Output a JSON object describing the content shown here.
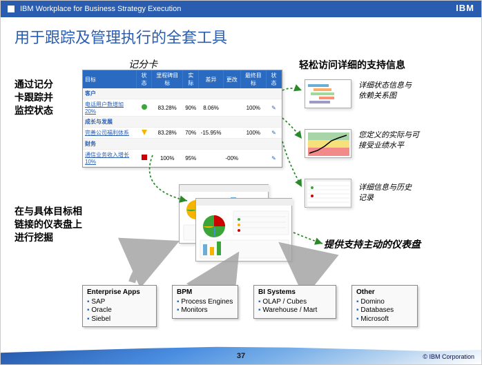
{
  "header": {
    "breadcrumb": "IBM Workplace for Business Strategy Execution",
    "logo": "IBM"
  },
  "title": "用于跟踪及管理执行的全套工具",
  "annotations": {
    "scorecard_label": "记分卡",
    "left_top": "通过记分\n卡跟踪并\n监控状态",
    "right_top": "轻松访问详细的支持信息",
    "left_mid": "在与具体目标相\n链接的仪表盘上\n进行挖掘",
    "right_mid": "提供支持主动的仪表盘",
    "thumb1_note": "详细状态信息与\n依赖关系图",
    "thumb2_note": "您定义的实际与可\n接受业绩水平",
    "thumb3_note": "详细信息与历史\n记录"
  },
  "scorecard": {
    "headers": [
      "目标",
      "状态",
      "里程碑目标",
      "实际",
      "差异",
      "更改",
      "最终目标",
      "状态"
    ],
    "sections": [
      {
        "name": "客户",
        "rows": [
          {
            "label": "电话用户数增加20%",
            "status": "green",
            "milestone": "83.28%",
            "actual": "90%",
            "variance": "8.06%",
            "change": "",
            "final": "100%",
            "mark": "✎"
          }
        ]
      },
      {
        "name": "成长与发展",
        "rows": [
          {
            "label": "完善公司福利体系",
            "status": "yellow",
            "milestone": "83.28%",
            "actual": "70%",
            "variance": "-15.95%",
            "change": "",
            "final": "100%",
            "mark": "✎"
          }
        ]
      },
      {
        "name": "财务",
        "rows": [
          {
            "label": "通信业务收入增长10%",
            "status": "red",
            "milestone": "100%",
            "actual": "95%",
            "variance": "",
            "change": "-00%",
            "final": "",
            "mark": "✎"
          }
        ]
      }
    ]
  },
  "sources": [
    {
      "title": "Enterprise Apps",
      "items": [
        "SAP",
        "Oracle",
        "Siebel"
      ]
    },
    {
      "title": "BPM",
      "items": [
        "Process Engines",
        "Monitors"
      ]
    },
    {
      "title": "BI Systems",
      "items": [
        "OLAP / Cubes",
        "Warehouse / Mart"
      ]
    },
    {
      "title": "Other",
      "items": [
        "Domino",
        "Databases",
        "Microsoft"
      ]
    }
  ],
  "footer": {
    "page": "37",
    "copyright": "© IBM Corporation"
  },
  "colors": {
    "ibm_blue": "#2a5db0",
    "header_bg": "#2a6ac0",
    "green": "#3aa63a",
    "yellow": "#f5b400",
    "red": "#c00",
    "arrow_green": "#2a8a2a",
    "arrow_gray": "#a0a0a0"
  },
  "thumbs": {
    "status_gantt": {
      "bars": [
        "#6aaed6",
        "#fdae6b",
        "#a1d99b",
        "#fc9272",
        "#9e9ac8"
      ]
    },
    "perf_chart": {
      "bg_top": "#a8d5a8",
      "bg_mid": "#f5e07a",
      "bg_bot": "#f28a8a",
      "line": "#000"
    },
    "history": {
      "rows": 6
    }
  }
}
